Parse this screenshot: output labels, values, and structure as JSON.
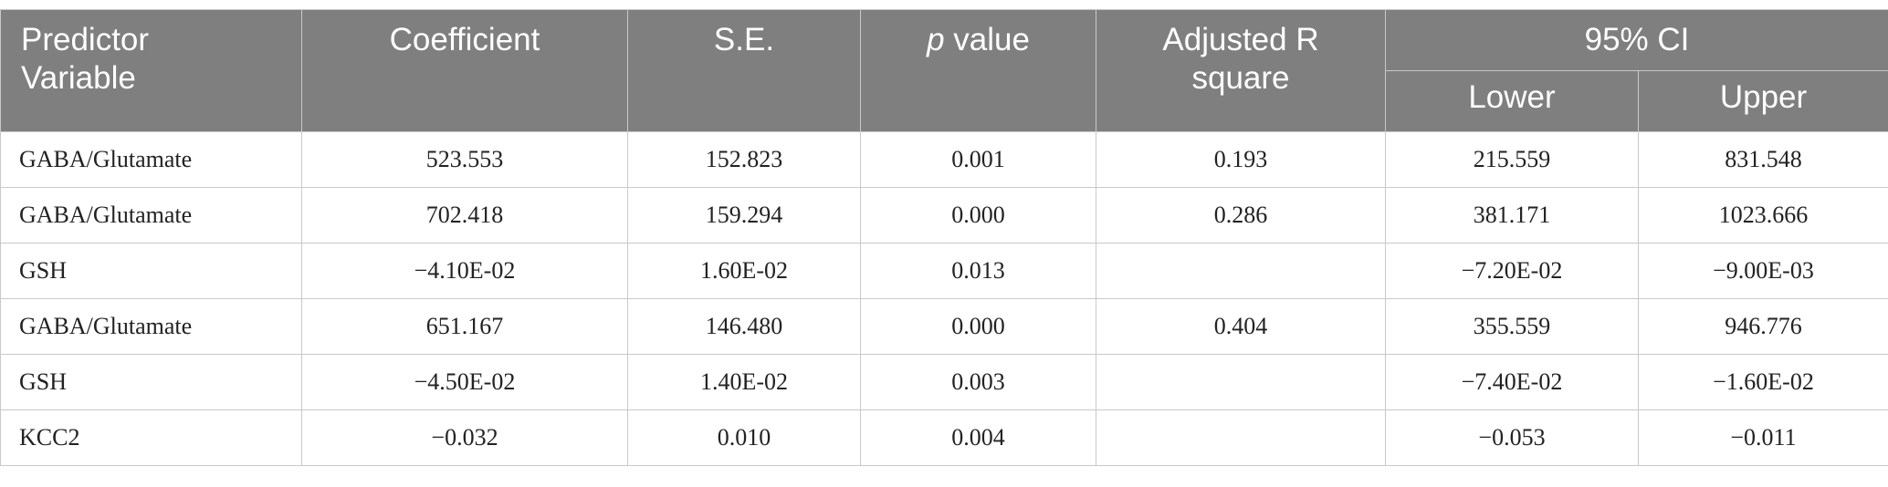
{
  "table": {
    "header": {
      "predictor": "Predictor Variable",
      "coefficient": "Coefficient",
      "se": "S.E.",
      "p": "p value",
      "r2": "Adjusted R square",
      "ci": "95% CI",
      "lower": "Lower",
      "upper": "Upper"
    },
    "rows": [
      [
        "GABA/Glutamate",
        "523.553",
        "152.823",
        "0.001",
        "0.193",
        "215.559",
        "831.548"
      ],
      [
        "GABA/Glutamate",
        "702.418",
        "159.294",
        "0.000",
        "0.286",
        "381.171",
        "1023.666"
      ],
      [
        "GSH",
        "−4.10E-02",
        "1.60E-02",
        "0.013",
        null,
        "−7.20E-02",
        "−9.00E-03"
      ],
      [
        "GABA/Glutamate",
        "651.167",
        "146.480",
        "0.000",
        "0.404",
        "355.559",
        "946.776"
      ],
      [
        "GSH",
        "−4.50E-02",
        "1.40E-02",
        "0.003",
        null,
        "−7.40E-02",
        "−1.60E-02"
      ],
      [
        "KCC2",
        "−0.032",
        "0.010",
        "0.004",
        null,
        "−0.053",
        "−0.011"
      ]
    ]
  }
}
